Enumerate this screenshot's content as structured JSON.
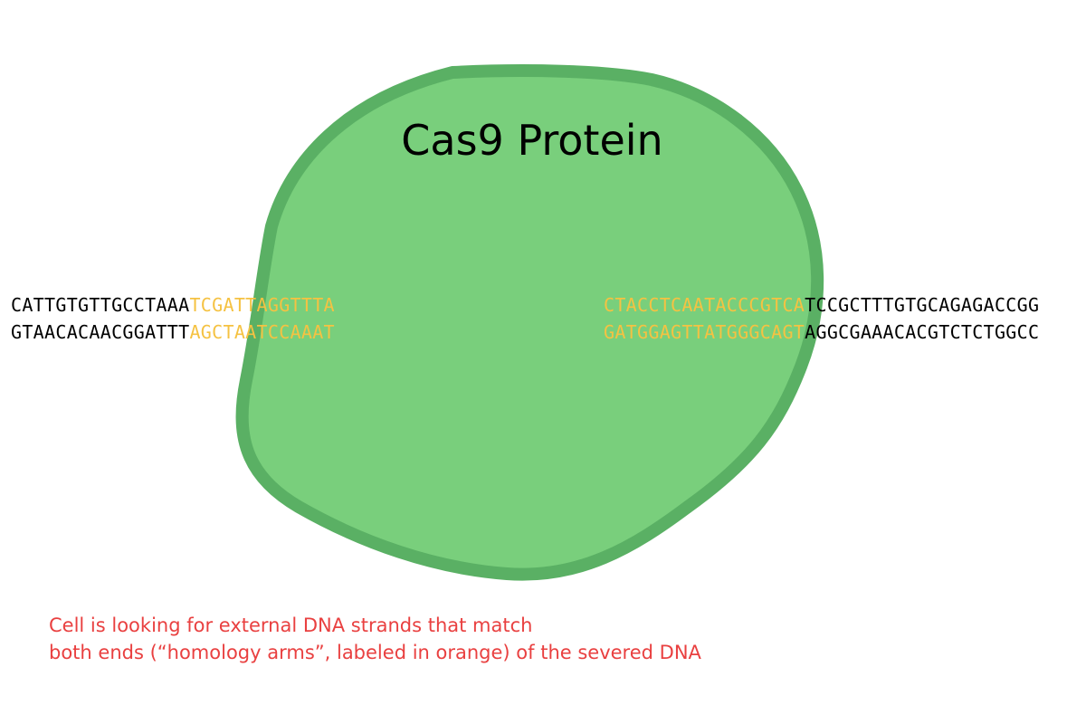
{
  "diagram": {
    "protein_label": "Cas9 Protein",
    "colors": {
      "protein_fill": "#79cf7c",
      "protein_stroke": "#5ab064",
      "homology_arm": "#f5c242",
      "dna_base": "#000000",
      "caption": "#e94040"
    },
    "left_dna": {
      "top": {
        "plain": "CATTGTGTTGCCTAAA",
        "arm": "TCGATTAGGTTTA"
      },
      "bottom": {
        "plain": "GTAACACAACGGATTT",
        "arm": "AGCTAATCCAAAT"
      }
    },
    "right_dna": {
      "top": {
        "arm": "CTACCTCAATACCCGTCA",
        "plain": "TCCGCTTTGTGCAGAGACCGG"
      },
      "bottom": {
        "arm": "GATGGAGTTATGGGCAGT",
        "plain": "AGGCGAAACACGTCTCTGGCC"
      }
    },
    "caption": {
      "line1": "Cell is looking for external DNA strands that match",
      "line2": "both ends (“homology arms”, labeled in orange) of the severed DNA"
    }
  }
}
